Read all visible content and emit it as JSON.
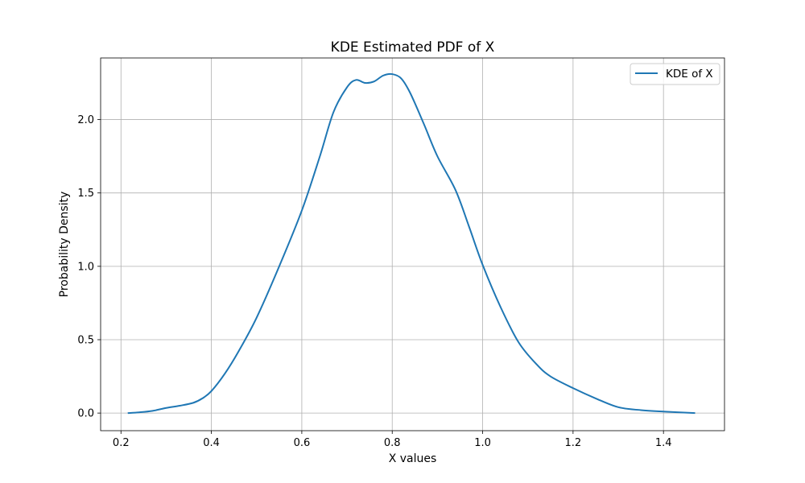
{
  "chart_data": {
    "type": "line",
    "title": "KDE Estimated PDF of X",
    "xlabel": "X values",
    "ylabel": "Probability Density",
    "xlim": [
      0.155,
      1.535
    ],
    "ylim": [
      -0.12,
      2.42
    ],
    "xticks": [
      0.2,
      0.4,
      0.6,
      0.8,
      1.0,
      1.2,
      1.4
    ],
    "xtick_labels": [
      "0.2",
      "0.4",
      "0.6",
      "0.8",
      "1.0",
      "1.2",
      "1.4"
    ],
    "yticks": [
      0.0,
      0.5,
      1.0,
      1.5,
      2.0
    ],
    "ytick_labels": [
      "0.0",
      "0.5",
      "1.0",
      "1.5",
      "2.0"
    ],
    "grid": true,
    "legend_position": "top-right",
    "series": [
      {
        "name": "KDE of X",
        "color": "#1f77b4",
        "x": [
          0.215,
          0.24,
          0.27,
          0.3,
          0.33,
          0.36,
          0.38,
          0.4,
          0.43,
          0.46,
          0.5,
          0.55,
          0.6,
          0.64,
          0.67,
          0.7,
          0.72,
          0.74,
          0.76,
          0.78,
          0.8,
          0.82,
          0.84,
          0.87,
          0.9,
          0.94,
          0.97,
          1.0,
          1.04,
          1.08,
          1.12,
          1.15,
          1.2,
          1.25,
          1.3,
          1.35,
          1.4,
          1.47
        ],
        "y": [
          0.0,
          0.005,
          0.015,
          0.035,
          0.05,
          0.07,
          0.1,
          0.15,
          0.27,
          0.42,
          0.65,
          1.0,
          1.38,
          1.75,
          2.05,
          2.22,
          2.27,
          2.25,
          2.26,
          2.3,
          2.31,
          2.28,
          2.18,
          1.97,
          1.75,
          1.52,
          1.27,
          1.01,
          0.72,
          0.48,
          0.33,
          0.25,
          0.17,
          0.1,
          0.04,
          0.02,
          0.01,
          0.0
        ]
      }
    ]
  }
}
